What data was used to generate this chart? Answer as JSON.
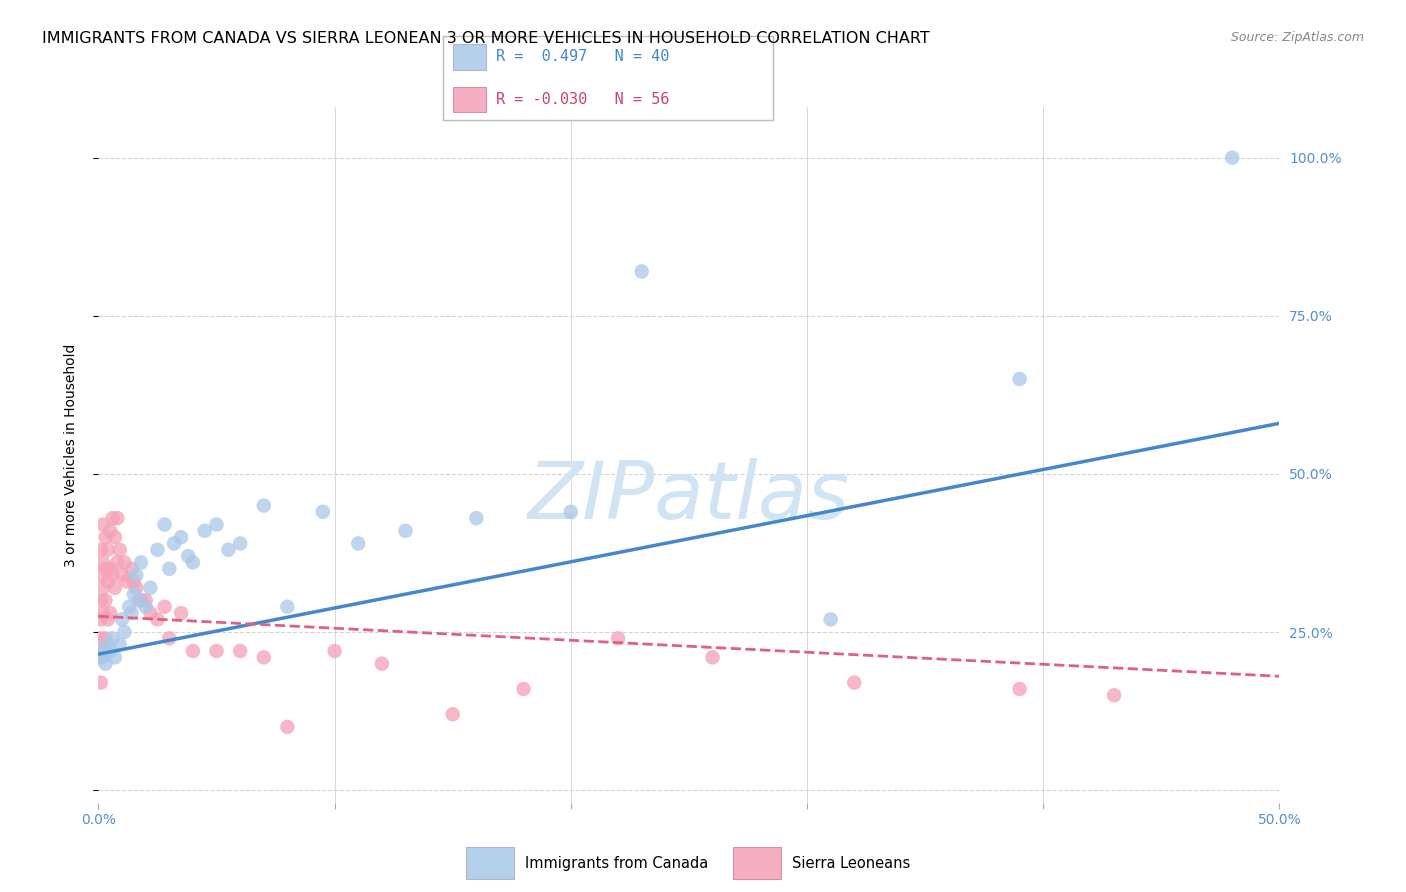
{
  "title": "IMMIGRANTS FROM CANADA VS SIERRA LEONEAN 3 OR MORE VEHICLES IN HOUSEHOLD CORRELATION CHART",
  "source": "Source: ZipAtlas.com",
  "ylabel": "3 or more Vehicles in Household",
  "xlim": [
    0.0,
    0.5
  ],
  "ylim": [
    -0.02,
    1.08
  ],
  "legend_blue_r": "0.497",
  "legend_blue_n": "40",
  "legend_pink_r": "-0.030",
  "legend_pink_n": "56",
  "legend_label_blue": "Immigrants from Canada",
  "legend_label_pink": "Sierra Leoneans",
  "blue_color": "#a8c8e8",
  "blue_line_color": "#4488cc",
  "pink_color": "#f4a0b8",
  "pink_line_color": "#e06080",
  "watermark": "ZIPatlas",
  "watermark_color": "#d0e4f4",
  "blue_points_x": [
    0.001,
    0.002,
    0.003,
    0.004,
    0.005,
    0.006,
    0.007,
    0.009,
    0.01,
    0.011,
    0.013,
    0.014,
    0.015,
    0.016,
    0.017,
    0.018,
    0.02,
    0.022,
    0.025,
    0.028,
    0.03,
    0.032,
    0.035,
    0.038,
    0.04,
    0.045,
    0.05,
    0.055,
    0.06,
    0.07,
    0.08,
    0.095,
    0.11,
    0.13,
    0.16,
    0.2,
    0.23,
    0.31,
    0.39,
    0.48
  ],
  "blue_points_y": [
    0.22,
    0.21,
    0.2,
    0.23,
    0.22,
    0.24,
    0.21,
    0.23,
    0.27,
    0.25,
    0.29,
    0.28,
    0.31,
    0.34,
    0.3,
    0.36,
    0.29,
    0.32,
    0.38,
    0.42,
    0.35,
    0.39,
    0.4,
    0.37,
    0.36,
    0.41,
    0.42,
    0.38,
    0.39,
    0.45,
    0.29,
    0.44,
    0.39,
    0.41,
    0.43,
    0.44,
    0.82,
    0.27,
    0.65,
    1.0
  ],
  "pink_points_x": [
    0.001,
    0.001,
    0.001,
    0.001,
    0.001,
    0.001,
    0.001,
    0.002,
    0.002,
    0.002,
    0.002,
    0.002,
    0.003,
    0.003,
    0.003,
    0.003,
    0.004,
    0.004,
    0.004,
    0.005,
    0.005,
    0.005,
    0.006,
    0.006,
    0.007,
    0.007,
    0.008,
    0.008,
    0.009,
    0.01,
    0.011,
    0.012,
    0.014,
    0.015,
    0.016,
    0.018,
    0.02,
    0.022,
    0.025,
    0.028,
    0.03,
    0.035,
    0.04,
    0.05,
    0.06,
    0.07,
    0.08,
    0.1,
    0.12,
    0.15,
    0.18,
    0.22,
    0.26,
    0.32,
    0.39,
    0.43
  ],
  "pink_points_y": [
    0.38,
    0.34,
    0.3,
    0.27,
    0.24,
    0.21,
    0.17,
    0.42,
    0.36,
    0.32,
    0.28,
    0.22,
    0.4,
    0.35,
    0.3,
    0.24,
    0.38,
    0.33,
    0.27,
    0.41,
    0.35,
    0.28,
    0.43,
    0.34,
    0.4,
    0.32,
    0.43,
    0.36,
    0.38,
    0.34,
    0.36,
    0.33,
    0.35,
    0.33,
    0.32,
    0.3,
    0.3,
    0.28,
    0.27,
    0.29,
    0.24,
    0.28,
    0.22,
    0.22,
    0.22,
    0.21,
    0.1,
    0.22,
    0.2,
    0.12,
    0.16,
    0.24,
    0.21,
    0.17,
    0.16,
    0.15
  ],
  "background_color": "#ffffff",
  "grid_color": "#d0d0d0",
  "title_fontsize": 11.5,
  "axis_fontsize": 10,
  "tick_fontsize": 10,
  "source_fontsize": 9
}
